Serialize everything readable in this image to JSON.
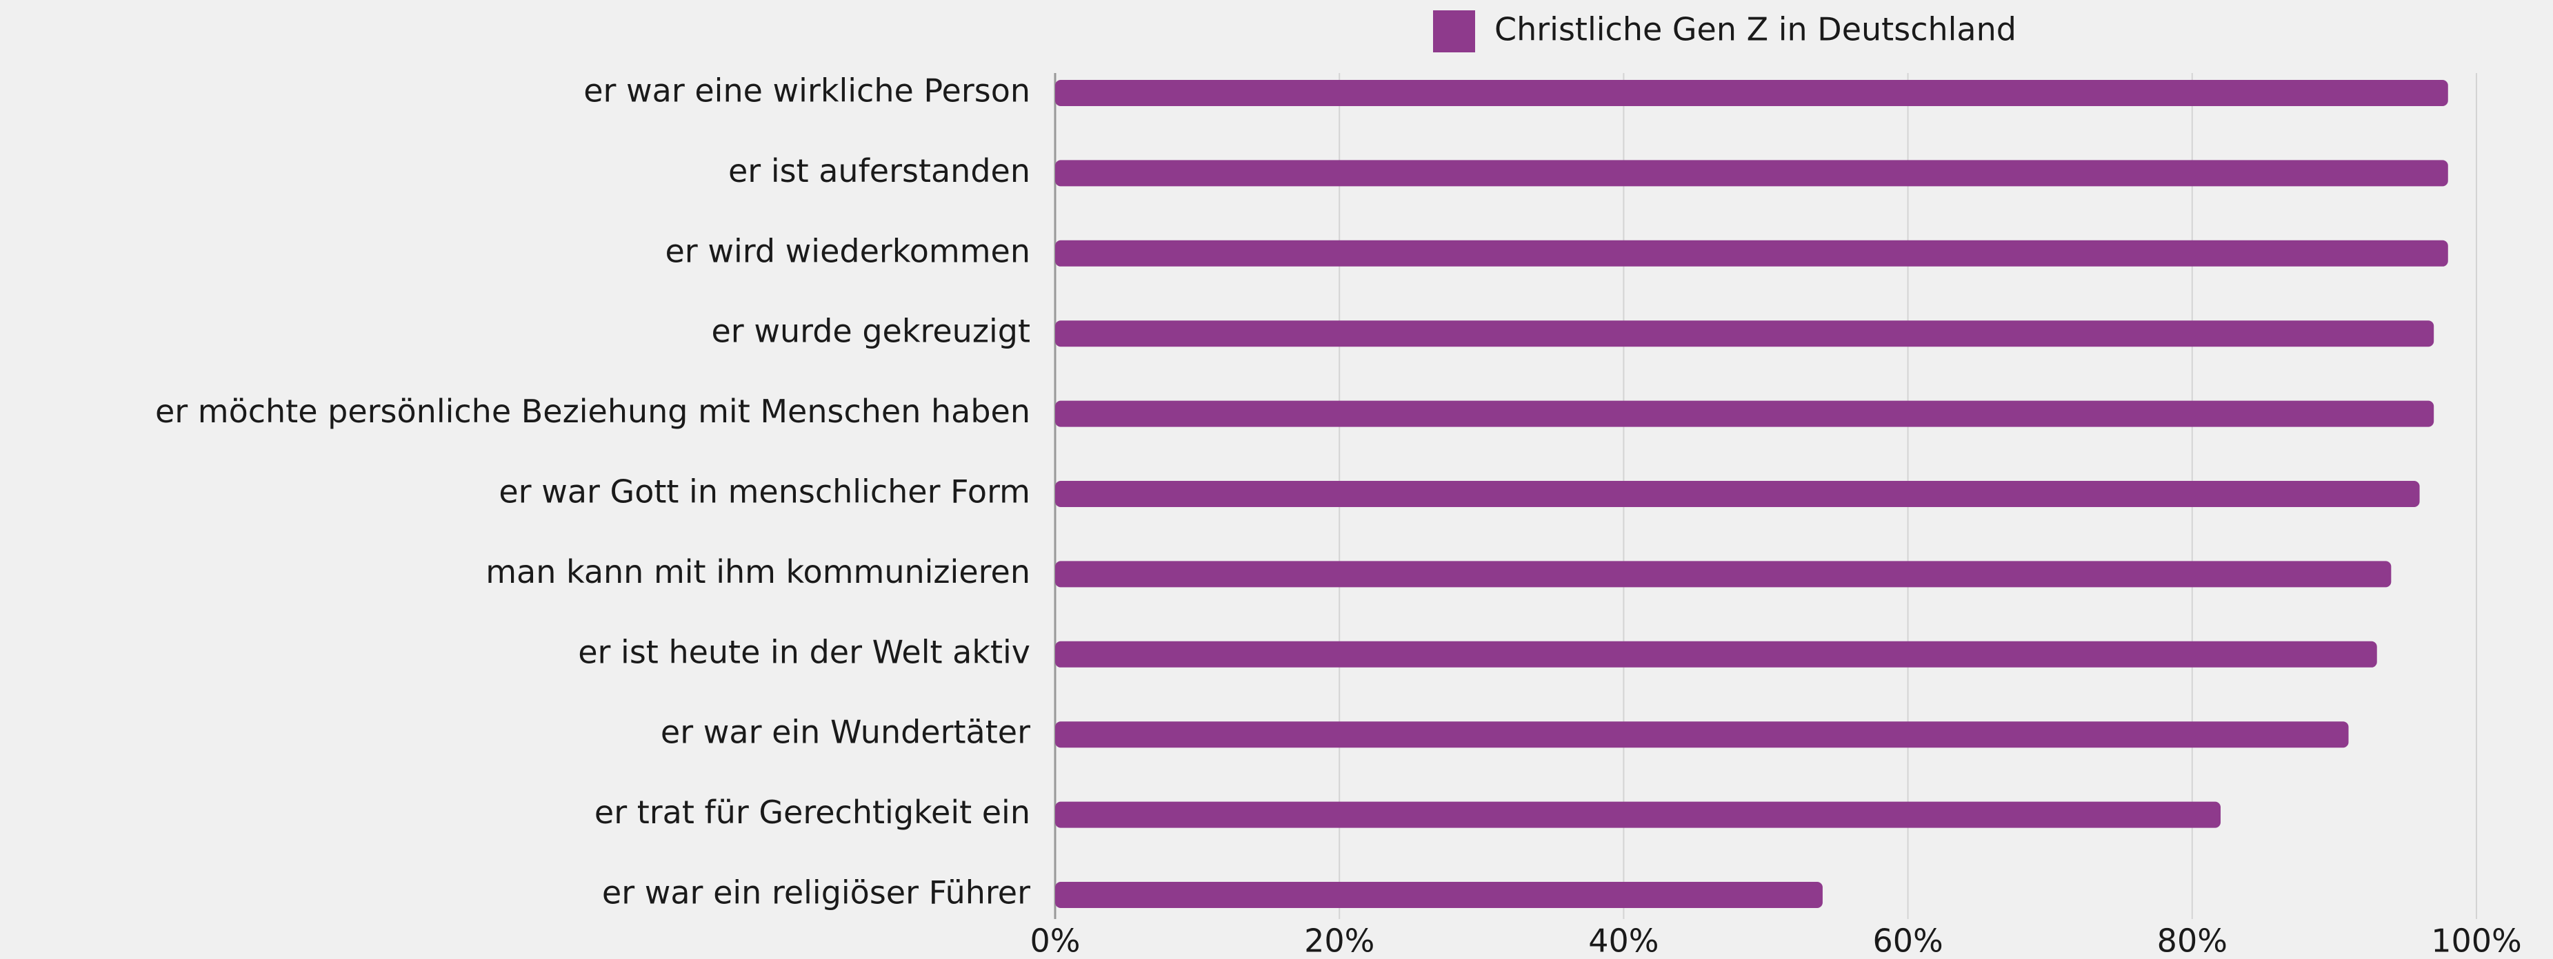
{
  "chart_data": {
    "type": "bar",
    "orientation": "horizontal",
    "categories": [
      "er war eine wirkliche Person",
      "er ist auferstanden",
      "er wird wiederkommen",
      "er wurde gekreuzigt",
      "er möchte persönliche Beziehung mit Menschen haben",
      "er war Gott in menschlicher Form",
      "man kann mit ihm kommunizieren",
      "er ist heute in der Welt aktiv",
      "er war ein Wundertäter",
      "er trat für Gerechtigkeit ein",
      "er war ein religiöser Führer"
    ],
    "series": [
      {
        "name": "Christliche Gen Z in Deutschland",
        "color": "#8e3a8c",
        "values": [
          98,
          98,
          98,
          97,
          97,
          96,
          94,
          93,
          91,
          82,
          54
        ]
      }
    ],
    "xlim": [
      0,
      100
    ],
    "xticks": [
      {
        "value": 0,
        "label": "0%"
      },
      {
        "value": 20,
        "label": "20%"
      },
      {
        "value": 40,
        "label": "40%"
      },
      {
        "value": 60,
        "label": "60%"
      },
      {
        "value": 80,
        "label": "80%"
      },
      {
        "value": 100,
        "label": "100%"
      }
    ],
    "grid": true,
    "legend": "top"
  }
}
